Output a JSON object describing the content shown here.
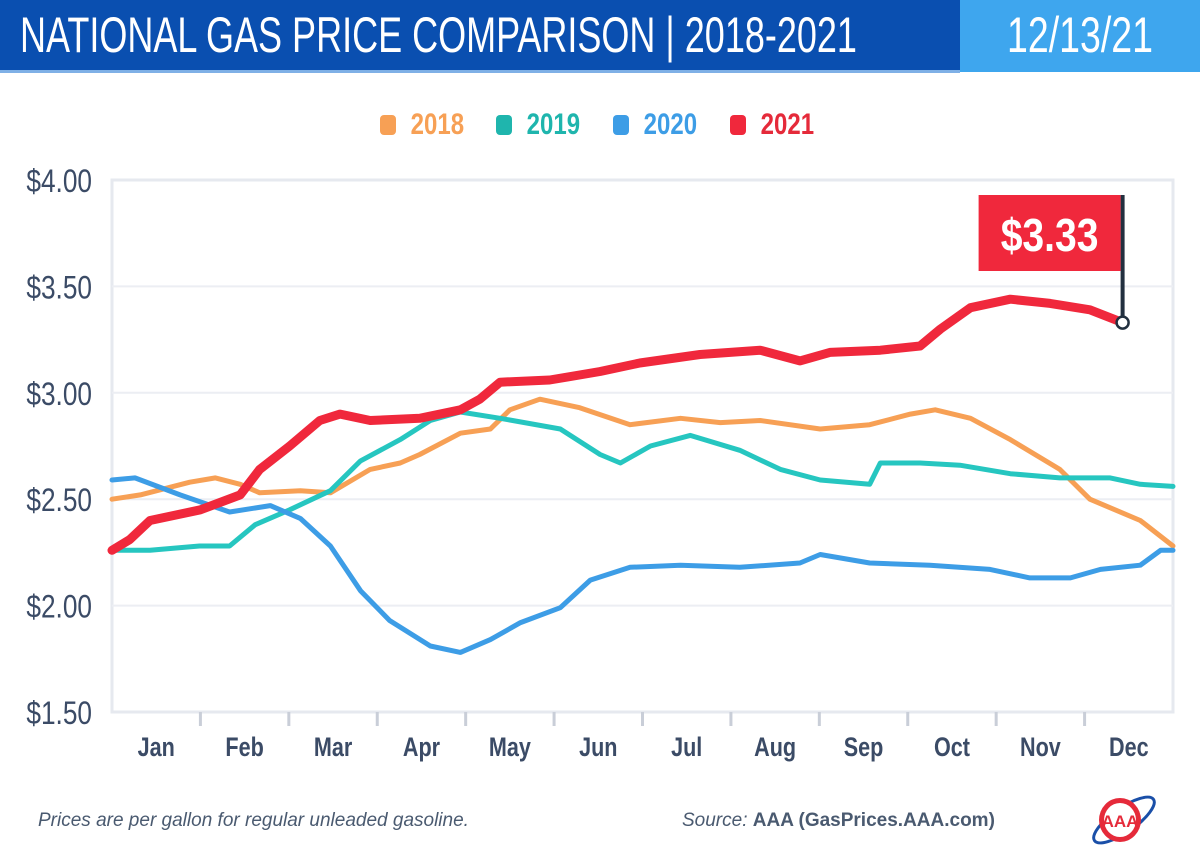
{
  "header": {
    "title": "NATIONAL GAS PRICE COMPARISON | 2018-2021",
    "date": "12/13/21",
    "bg_color": "#0a4fb0",
    "date_bg_color": "#3ea6ee"
  },
  "footer": {
    "note": "Prices are per gallon for regular unleaded gasoline.",
    "source_label": "Source:",
    "source_value": "AAA (GasPrices.AAA.com)",
    "logo_text": "AAA"
  },
  "chart_data": {
    "type": "line",
    "title": "NATIONAL GAS PRICE COMPARISON | 2018-2021",
    "xlabel": "",
    "ylabel": "",
    "x_unit": "months from start of January",
    "x_tick_labels": [
      "Jan",
      "Feb",
      "Mar",
      "Apr",
      "May",
      "Jun",
      "Jul",
      "Aug",
      "Sep",
      "Oct",
      "Nov",
      "Dec"
    ],
    "xlim": [
      0,
      12
    ],
    "ylim": [
      1.5,
      4.0
    ],
    "y_ticks": [
      1.5,
      2.0,
      2.5,
      3.0,
      3.5,
      4.0
    ],
    "y_tick_labels": [
      "$1.50",
      "$2.00",
      "$2.50",
      "$3.00",
      "$3.50",
      "$4.00"
    ],
    "grid": true,
    "legend_position": "top-center",
    "annotation": {
      "label": "$3.33",
      "series": "2021",
      "x": 11.43,
      "y": 3.33,
      "color": "#f0283c"
    },
    "series": [
      {
        "name": "2018",
        "color": "#f7a055",
        "x": [
          0,
          0.32,
          0.88,
          1.17,
          1.45,
          1.67,
          2.13,
          2.47,
          2.92,
          3.26,
          3.48,
          3.94,
          4.28,
          4.5,
          4.84,
          5.29,
          5.86,
          6.43,
          6.88,
          7.33,
          8.01,
          8.57,
          9.03,
          9.31,
          9.71,
          10.16,
          10.72,
          11.06,
          11.63,
          12
        ],
        "y": [
          2.5,
          2.52,
          2.58,
          2.6,
          2.57,
          2.53,
          2.54,
          2.53,
          2.64,
          2.67,
          2.71,
          2.81,
          2.83,
          2.92,
          2.97,
          2.93,
          2.85,
          2.88,
          2.86,
          2.87,
          2.83,
          2.85,
          2.9,
          2.92,
          2.88,
          2.78,
          2.64,
          2.5,
          2.4,
          2.28
        ]
      },
      {
        "name": "2019",
        "color": "#26c6c0",
        "x": [
          0,
          0.43,
          0.99,
          1.33,
          1.62,
          2.01,
          2.47,
          2.81,
          3.26,
          3.6,
          3.94,
          4.39,
          5.07,
          5.52,
          5.75,
          6.09,
          6.54,
          7.1,
          7.56,
          8.01,
          8.57,
          8.69,
          9.14,
          9.59,
          10.16,
          10.72,
          11.29,
          11.63,
          12
        ],
        "y": [
          2.26,
          2.26,
          2.28,
          2.28,
          2.38,
          2.45,
          2.54,
          2.68,
          2.78,
          2.87,
          2.91,
          2.88,
          2.83,
          2.71,
          2.67,
          2.75,
          2.8,
          2.73,
          2.64,
          2.59,
          2.57,
          2.67,
          2.67,
          2.66,
          2.62,
          2.6,
          2.6,
          2.57,
          2.56
        ]
      },
      {
        "name": "2020",
        "color": "#3d9de6",
        "x": [
          0,
          0.26,
          0.77,
          1.33,
          1.79,
          2.13,
          2.47,
          2.81,
          3.14,
          3.6,
          3.94,
          4.28,
          4.62,
          5.07,
          5.41,
          5.86,
          6.43,
          7.1,
          7.78,
          8.01,
          8.57,
          9.25,
          9.93,
          10.38,
          10.84,
          11.18,
          11.63,
          11.86,
          12
        ],
        "y": [
          2.59,
          2.6,
          2.52,
          2.44,
          2.47,
          2.41,
          2.28,
          2.07,
          1.93,
          1.81,
          1.78,
          1.84,
          1.92,
          1.99,
          2.12,
          2.18,
          2.19,
          2.18,
          2.2,
          2.24,
          2.2,
          2.19,
          2.17,
          2.13,
          2.13,
          2.17,
          2.19,
          2.26,
          2.26
        ]
      },
      {
        "name": "2021",
        "color": "#f0283c",
        "x": [
          0,
          0.2,
          0.43,
          1,
          1.45,
          1.67,
          2.01,
          2.35,
          2.58,
          2.92,
          3.48,
          3.94,
          4.16,
          4.39,
          4.95,
          5.52,
          5.97,
          6.65,
          7.33,
          7.78,
          8.12,
          8.69,
          9.14,
          9.37,
          9.71,
          10.16,
          10.61,
          11.06,
          11.43
        ],
        "y": [
          2.26,
          2.31,
          2.4,
          2.45,
          2.52,
          2.64,
          2.75,
          2.87,
          2.9,
          2.87,
          2.88,
          2.92,
          2.97,
          3.05,
          3.06,
          3.1,
          3.14,
          3.18,
          3.2,
          3.15,
          3.19,
          3.2,
          3.22,
          3.3,
          3.4,
          3.44,
          3.42,
          3.39,
          3.33
        ]
      }
    ]
  }
}
